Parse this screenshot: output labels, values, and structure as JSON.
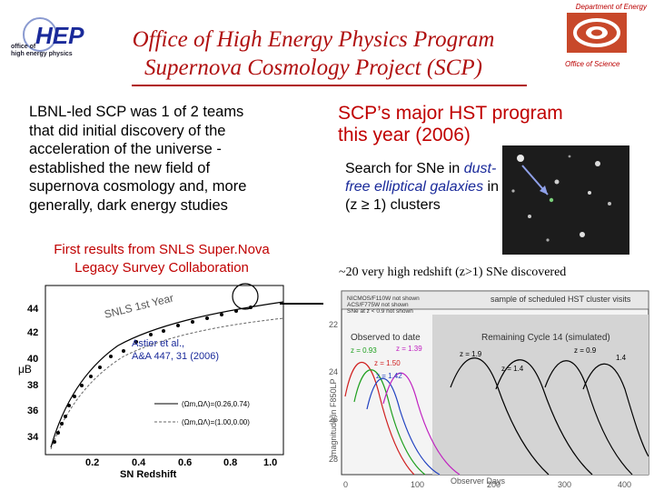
{
  "header": {
    "hep_logo_text": "HEP",
    "hep_sub_line1": "office of",
    "hep_sub_line2": "high energy physics",
    "doe_top": "Department of Energy",
    "doe_sub": "Office of Science",
    "title_line1": "Office of High Energy Physics Program",
    "title_line2": "Supernova Cosmology Project (SCP)"
  },
  "left": {
    "paragraph": "LBNL-led SCP was 1 of 2 teams that did initial discovery of the acceleration of the universe - established the new field of supernova cosmology and, more generally, dark energy studies",
    "first_results_line1": "First results from SNLS Super.Nova",
    "first_results_line2": "Legacy Survey Collaboration"
  },
  "right": {
    "heading_line1": "SCP’s major HST program",
    "heading_line2": "this year (2006)",
    "search_pre": "Search for SNe in ",
    "search_ital": "dust-free elliptical galaxies",
    "search_post": " in (z ≥ 1) clusters",
    "discovered": "~20  very high redshift (z>1)  SNe discovered"
  },
  "hubble": {
    "in_plot_label": "SNLS 1st Year",
    "ref_line1": "Astier et al.,",
    "ref_line2": "A&A 447, 31 (2006)",
    "xlabel": "SN Redshift",
    "ylabel": "μB",
    "yticks": [
      "44",
      "42",
      "40",
      "38",
      "36",
      "34"
    ],
    "xticks": [
      "0.2",
      "0.4",
      "0.6",
      "0.8",
      "1.0"
    ],
    "legend1": "(Ωm,ΩΛ)=(0.26,0.74)",
    "legend2": "(Ωm,ΩΛ)=(1.00,0.00)"
  },
  "lightcurve": {
    "box_line1": "NICMOS/F110W not shown",
    "box_line2": "ACS/F775W not shown",
    "box_line3": "SNe at z < 0.9 not shown",
    "sample_label": "sample of scheduled HST cluster visits",
    "observed_label": "Observed to date",
    "remaining_label": "Remaining Cycle 14 (simulated)",
    "ylabel": "magnitude in F850LP",
    "xlabel": "Observer Days",
    "yticks": [
      "22",
      "24",
      "26",
      "28"
    ],
    "xticks": [
      "0",
      "100",
      "200",
      "300",
      "400"
    ],
    "z_labels": [
      "z = 0.93",
      "z = 1.39",
      "z = 1.50",
      "z = 1.42",
      "z = 1.9",
      "z = 1.4",
      "z = 0.9",
      "1.4"
    ]
  },
  "colors": {
    "title_red": "#b01010",
    "emphasis_blue": "#1a2a9a",
    "accent_red": "#c00000"
  }
}
